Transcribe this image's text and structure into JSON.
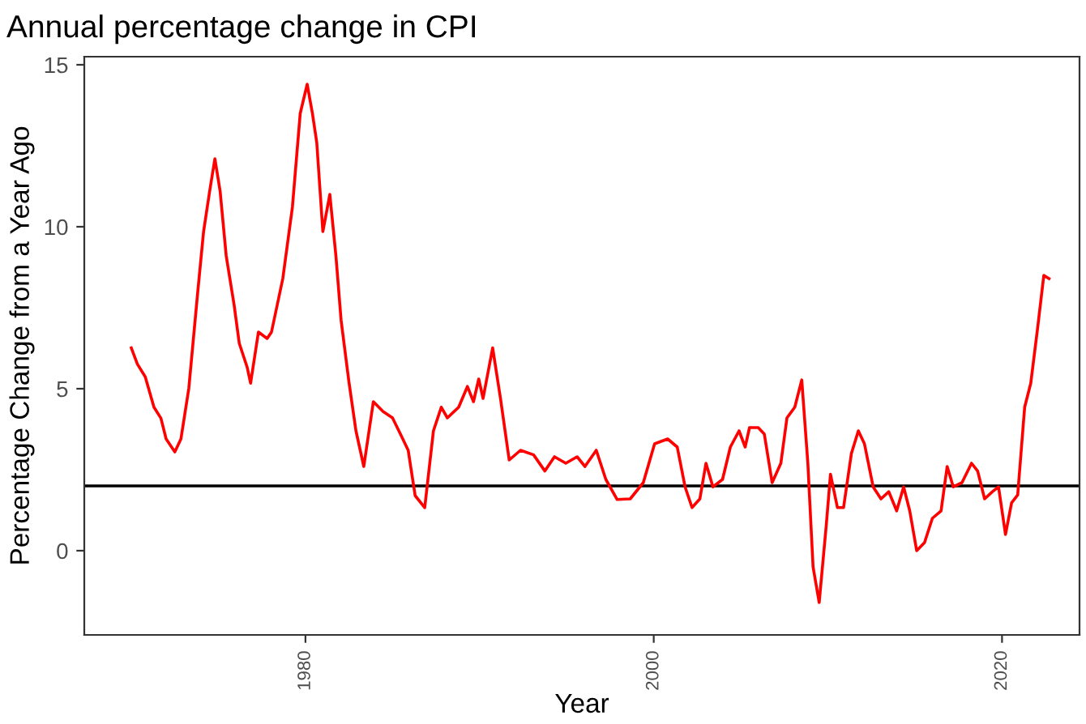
{
  "chart_data": {
    "type": "line",
    "title": "Annual percentage change in CPI",
    "xlabel": "Year",
    "ylabel": "Percentage Change from a Year Ago",
    "x": [
      1970.0,
      1970.35,
      1970.8,
      1971.3,
      1971.7,
      1972.0,
      1972.5,
      1972.85,
      1973.3,
      1973.8,
      1974.15,
      1974.5,
      1974.8,
      1975.1,
      1975.45,
      1975.9,
      1976.2,
      1976.65,
      1976.85,
      1977.3,
      1977.8,
      1978.05,
      1978.7,
      1979.25,
      1979.7,
      1980.1,
      1980.4,
      1980.65,
      1981.0,
      1981.4,
      1981.75,
      1982.05,
      1982.5,
      1982.9,
      1983.35,
      1983.9,
      1984.45,
      1985.0,
      1985.5,
      1985.9,
      1986.3,
      1986.85,
      1987.35,
      1987.8,
      1988.15,
      1988.8,
      1989.3,
      1989.65,
      1989.95,
      1990.2,
      1990.75,
      1991.2,
      1991.7,
      1992.35,
      1993.1,
      1993.75,
      1994.3,
      1994.95,
      1995.6,
      1996.05,
      1996.7,
      1997.25,
      1997.9,
      1998.65,
      1999.4,
      2000.05,
      2000.8,
      2001.35,
      2001.8,
      2002.2,
      2002.65,
      2003.0,
      2003.4,
      2003.95,
      2004.4,
      2004.9,
      2005.25,
      2005.5,
      2006.0,
      2006.35,
      2006.8,
      2007.3,
      2007.65,
      2008.1,
      2008.5,
      2008.85,
      2009.15,
      2009.5,
      2009.9,
      2010.15,
      2010.55,
      2010.9,
      2011.35,
      2011.75,
      2012.1,
      2012.6,
      2013.05,
      2013.5,
      2013.95,
      2014.35,
      2014.7,
      2015.1,
      2015.55,
      2016.0,
      2016.5,
      2016.85,
      2017.2,
      2017.7,
      2018.25,
      2018.6,
      2019.0,
      2019.45,
      2019.8,
      2020.2,
      2020.55,
      2020.9,
      2021.3,
      2021.65,
      2022.05,
      2022.4,
      2022.7
    ],
    "series": [
      {
        "color": "#ff0000",
        "values": [
          6.26,
          5.76,
          5.37,
          4.43,
          4.09,
          3.45,
          3.05,
          3.45,
          5.0,
          7.9,
          9.85,
          11.1,
          12.1,
          11.1,
          9.1,
          7.6,
          6.4,
          5.67,
          5.17,
          6.75,
          6.55,
          6.75,
          8.4,
          10.6,
          13.5,
          14.4,
          13.5,
          12.6,
          9.85,
          11.0,
          9.1,
          7.1,
          5.2,
          3.7,
          2.6,
          4.6,
          4.3,
          4.1,
          3.55,
          3.1,
          1.7,
          1.33,
          3.7,
          4.43,
          4.1,
          4.43,
          5.07,
          4.6,
          5.3,
          4.7,
          6.26,
          4.7,
          2.8,
          3.1,
          2.96,
          2.46,
          2.9,
          2.7,
          2.9,
          2.6,
          3.1,
          2.2,
          1.58,
          1.6,
          2.1,
          3.3,
          3.45,
          3.2,
          1.97,
          1.33,
          1.6,
          2.7,
          1.97,
          2.2,
          3.2,
          3.7,
          3.2,
          3.8,
          3.8,
          3.6,
          2.1,
          2.7,
          4.1,
          4.43,
          5.27,
          2.7,
          -0.5,
          -1.6,
          0.74,
          2.36,
          1.33,
          1.33,
          3.0,
          3.7,
          3.3,
          1.97,
          1.6,
          1.82,
          1.23,
          1.97,
          1.23,
          0.0,
          0.25,
          1.0,
          1.23,
          2.6,
          1.97,
          2.1,
          2.7,
          2.46,
          1.6,
          1.82,
          1.97,
          0.5,
          1.48,
          1.72,
          4.43,
          5.17,
          6.9,
          8.5,
          8.4
        ]
      }
    ],
    "xlim": [
      1967.3,
      2024.45
    ],
    "ylim": [
      -2.6,
      15.25
    ],
    "xticks": [
      1980,
      2000,
      2020
    ],
    "yticks": [
      0,
      5,
      10,
      15
    ],
    "ref_lines": [
      {
        "axis": "y",
        "value": 2,
        "color": "#000000"
      }
    ],
    "grid": false,
    "legend": false,
    "line_style": "solid",
    "marker": "none"
  }
}
